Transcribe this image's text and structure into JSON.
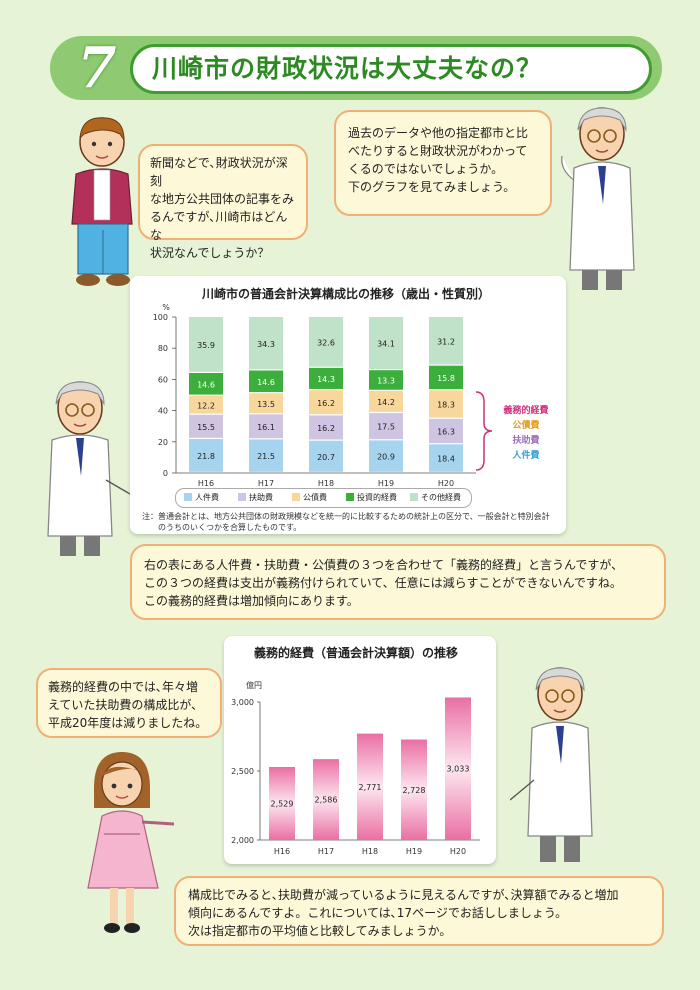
{
  "header": {
    "number": "7",
    "title": "川崎市の財政状況は大丈夫なの？"
  },
  "bubbles": {
    "boy": [
      "新聞などで､財政状況が深刻",
      "な地方公共団体の記事をみ",
      "るんですが､川崎市はどんな",
      "状況なんでしょうか？"
    ],
    "professor_top": [
      "過去のデータや他の指定都市と比",
      "べたりすると財政状況がわかって",
      "くるのではないでしょうか。",
      "下のグラフを見てみましょう。"
    ],
    "professor_mid": [
      "右の表にある人件費・扶助費・公債費の３つを合わせて「義務的経費」と言うんですが、",
      "この３つの経費は支出が義務付けられていて、任意には減らすことができないんですね。",
      "この義務的経費は増加傾向にあります。"
    ],
    "girl": [
      "義務的経費の中では､年々増",
      "えていた扶助費の構成比が､",
      "平成20年度は減りましたね。"
    ],
    "professor_bottom": [
      "構成比でみると､扶助費が減っているように見えるんですが､決算額でみると増加",
      "傾向にあるんですよ。これについては､17ページでお話ししましょう。",
      "次は指定都市の平均値と比較してみましょうか。"
    ]
  },
  "chart1": {
    "title": "川崎市の普通会計決算構成比の推移（歳出・性質別）",
    "unit": "%",
    "obligatory_label": "義務的経費",
    "legend": [
      "人件費",
      "扶助費",
      "公債費",
      "投資的経費",
      "その他経費"
    ],
    "note_lines": [
      "注：普通会計とは、地方公共団体の財政規模などを統一的に比較するための統計上の区分で、一般会計と特別会計",
      "　　のうちのいくつかを合算したものです。"
    ]
  },
  "chart2": {
    "title": "義務的経費（普通会計決算額）の推移",
    "unit": "億円"
  },
  "chart_data": [
    {
      "type": "bar",
      "stacked": true,
      "title": "川崎市の普通会計決算構成比の推移（歳出・性質別）",
      "ylabel": "%",
      "ylim": [
        0,
        100
      ],
      "yticks": [
        0,
        20,
        40,
        60,
        80,
        100
      ],
      "categories": [
        "H16",
        "H17",
        "H18",
        "H19",
        "H20"
      ],
      "series": [
        {
          "name": "人件費",
          "color": "#a6d4ef",
          "values": [
            21.8,
            21.5,
            20.7,
            20.9,
            18.4
          ]
        },
        {
          "name": "扶助費",
          "color": "#cfc4e2",
          "values": [
            15.5,
            16.1,
            16.2,
            17.5,
            16.3
          ]
        },
        {
          "name": "公債費",
          "color": "#f8d79c",
          "values": [
            12.2,
            13.5,
            16.2,
            14.2,
            18.3
          ]
        },
        {
          "name": "投資的経費",
          "color": "#3bae3b",
          "values": [
            14.6,
            14.6,
            14.3,
            13.3,
            15.8
          ]
        },
        {
          "name": "その他経費",
          "color": "#bfe2c8",
          "values": [
            35.9,
            34.3,
            32.6,
            34.1,
            31.2
          ]
        }
      ],
      "legend_position": "bottom"
    },
    {
      "type": "bar",
      "title": "義務的経費（普通会計決算額）の推移",
      "ylabel": "億円",
      "ylim": [
        2000,
        3000
      ],
      "yticks": [
        2000,
        2500,
        3000
      ],
      "categories": [
        "H16",
        "H17",
        "H18",
        "H19",
        "H20"
      ],
      "values": [
        2529,
        2586,
        2771,
        2728,
        3033
      ],
      "value_labels": [
        "2,529",
        "2,586",
        "2,771",
        "2,728",
        "3,033"
      ],
      "color": "#e96fa3"
    }
  ]
}
